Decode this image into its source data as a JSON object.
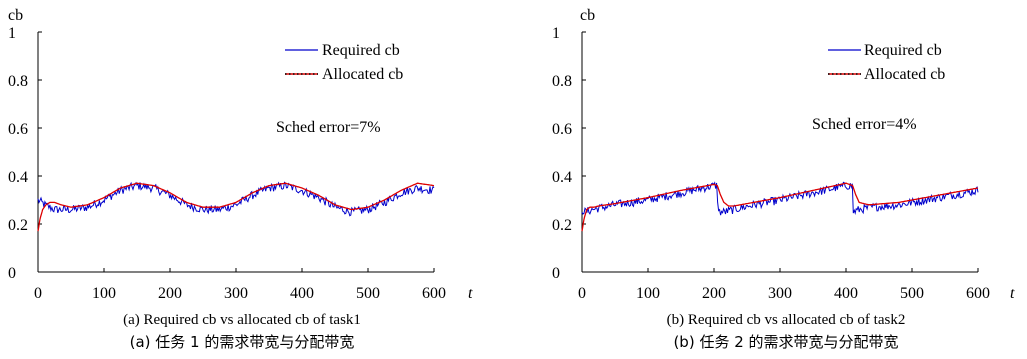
{
  "chart_data": [
    {
      "type": "line",
      "panel": "a",
      "ylabel": "cb",
      "xlabel": "t",
      "xlim": [
        0,
        600
      ],
      "ylim": [
        0,
        1
      ],
      "x_ticks": [
        "0",
        "100",
        "200",
        "300",
        "400",
        "500",
        "600"
      ],
      "y_ticks": [
        "0",
        "0.2",
        "0.4",
        "0.6",
        "0.8",
        "1"
      ],
      "legend": [
        "Required cb",
        "Allocated cb"
      ],
      "legend_position": "top-right",
      "annotation": "Sched error=7%",
      "caption": "(a) Required cb vs allocated cb of task1",
      "caption_cn": "(a)  任务 1 的需求带宽与分配带宽",
      "series": [
        {
          "name": "Required cb",
          "color": "#0000cc",
          "style": "noisy",
          "x": [
            0,
            10,
            25,
            50,
            75,
            100,
            125,
            150,
            175,
            200,
            225,
            250,
            275,
            300,
            325,
            350,
            375,
            400,
            425,
            450,
            475,
            500,
            525,
            550,
            575,
            600
          ],
          "values": [
            0.3,
            0.28,
            0.26,
            0.26,
            0.27,
            0.3,
            0.34,
            0.36,
            0.35,
            0.32,
            0.28,
            0.26,
            0.26,
            0.28,
            0.32,
            0.35,
            0.36,
            0.34,
            0.31,
            0.27,
            0.25,
            0.26,
            0.29,
            0.33,
            0.35,
            0.34
          ]
        },
        {
          "name": "Allocated cb",
          "color": "#dd0000",
          "style": "smooth",
          "x": [
            0,
            3,
            7,
            12,
            18,
            25,
            35,
            50,
            75,
            100,
            125,
            150,
            175,
            200,
            225,
            250,
            275,
            300,
            325,
            350,
            375,
            400,
            425,
            450,
            475,
            500,
            525,
            550,
            575,
            600
          ],
          "values": [
            0.17,
            0.22,
            0.26,
            0.28,
            0.29,
            0.29,
            0.28,
            0.27,
            0.28,
            0.31,
            0.35,
            0.37,
            0.36,
            0.33,
            0.29,
            0.27,
            0.27,
            0.29,
            0.33,
            0.36,
            0.37,
            0.35,
            0.32,
            0.28,
            0.26,
            0.27,
            0.3,
            0.34,
            0.37,
            0.36
          ]
        }
      ]
    },
    {
      "type": "line",
      "panel": "b",
      "ylabel": "cb",
      "xlabel": "t",
      "xlim": [
        0,
        600
      ],
      "ylim": [
        0,
        1
      ],
      "x_ticks": [
        "0",
        "100",
        "200",
        "300",
        "400",
        "500",
        "600"
      ],
      "y_ticks": [
        "0",
        "0.2",
        "0.4",
        "0.6",
        "0.8",
        "1"
      ],
      "legend": [
        "Required cb",
        "Allocated cb"
      ],
      "legend_position": "top-right",
      "annotation": "Sched error=4%",
      "caption": "(b) Required cb vs allocated cb of task2",
      "caption_cn": "(b)  任务 2 的需求带宽与分配带宽",
      "series": [
        {
          "name": "Required cb",
          "color": "#0000cc",
          "style": "noisy",
          "x": [
            0,
            5,
            15,
            50,
            100,
            150,
            200,
            205,
            206,
            215,
            230,
            260,
            300,
            350,
            400,
            410,
            411,
            420,
            440,
            480,
            520,
            560,
            600
          ],
          "values": [
            0.26,
            0.25,
            0.26,
            0.28,
            0.3,
            0.33,
            0.36,
            0.36,
            0.25,
            0.25,
            0.26,
            0.28,
            0.3,
            0.33,
            0.36,
            0.36,
            0.25,
            0.26,
            0.27,
            0.28,
            0.3,
            0.32,
            0.34
          ]
        },
        {
          "name": "Allocated cb",
          "color": "#dd0000",
          "style": "smooth",
          "x": [
            0,
            3,
            7,
            12,
            18,
            25,
            50,
            100,
            150,
            200,
            205,
            210,
            215,
            222,
            230,
            260,
            300,
            350,
            400,
            410,
            415,
            420,
            427,
            435,
            480,
            520,
            560,
            600
          ],
          "values": [
            0.17,
            0.22,
            0.26,
            0.27,
            0.27,
            0.275,
            0.285,
            0.31,
            0.34,
            0.365,
            0.36,
            0.32,
            0.29,
            0.275,
            0.275,
            0.29,
            0.31,
            0.34,
            0.37,
            0.36,
            0.32,
            0.29,
            0.285,
            0.28,
            0.29,
            0.31,
            0.33,
            0.35
          ]
        }
      ]
    }
  ]
}
